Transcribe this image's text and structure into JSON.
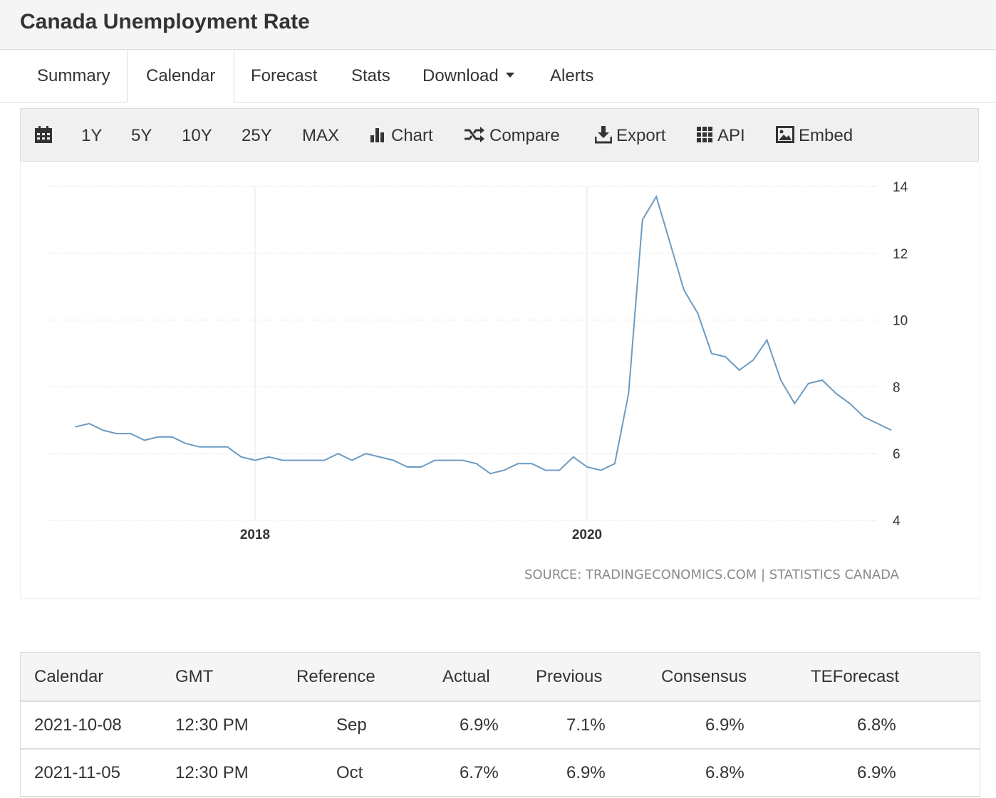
{
  "page": {
    "title": "Canada Unemployment Rate"
  },
  "tabs": [
    {
      "label": "Summary"
    },
    {
      "label": "Calendar",
      "active": true
    },
    {
      "label": "Forecast"
    },
    {
      "label": "Stats"
    },
    {
      "label": "Download",
      "has_dropdown": true
    },
    {
      "label": "Alerts"
    }
  ],
  "toolbar": {
    "calendar_icon": "calendar-icon",
    "ranges": [
      "1Y",
      "5Y",
      "10Y",
      "25Y",
      "MAX"
    ],
    "chart_label": "Chart",
    "chart_icon": "bar-chart-icon",
    "compare_label": "Compare",
    "compare_icon": "shuffle-icon",
    "export_label": "Export",
    "export_icon": "download-icon",
    "api_label": "API",
    "api_icon": "grid-icon",
    "embed_label": "Embed",
    "embed_icon": "image-icon"
  },
  "chart_data": {
    "type": "line",
    "title": "",
    "xlabel": "",
    "ylabel": "",
    "line_color": "#6b9bc3",
    "grid": true,
    "y_axis_side": "right",
    "ylim": [
      4,
      14
    ],
    "yticks": [
      "4",
      "6",
      "8",
      "10",
      "12",
      "14"
    ],
    "xticks": [
      {
        "label": "2018",
        "x": 2018.0
      },
      {
        "label": "2020",
        "x": 2020.0
      }
    ],
    "x_start": 2016.917,
    "x_step": 0.0833333,
    "values": [
      6.8,
      6.9,
      6.7,
      6.6,
      6.6,
      6.4,
      6.5,
      6.5,
      6.3,
      6.2,
      6.2,
      6.2,
      5.9,
      5.8,
      5.9,
      5.8,
      5.8,
      5.8,
      5.8,
      6.0,
      5.8,
      6.0,
      5.9,
      5.8,
      5.6,
      5.6,
      5.8,
      5.8,
      5.8,
      5.7,
      5.4,
      5.5,
      5.7,
      5.7,
      5.5,
      5.5,
      5.9,
      5.6,
      5.5,
      5.7,
      7.8,
      13.0,
      13.7,
      12.3,
      10.9,
      10.2,
      9.0,
      8.9,
      8.5,
      8.8,
      9.4,
      8.2,
      7.5,
      8.1,
      8.2,
      7.8,
      7.5,
      7.1,
      6.9,
      6.7
    ],
    "source": "SOURCE: TRADINGECONOMICS.COM | STATISTICS CANADA"
  },
  "calendar_table": {
    "headers": [
      "Calendar",
      "GMT",
      "Reference",
      "Actual",
      "Previous",
      "Consensus",
      "TEForecast"
    ],
    "rows": [
      [
        "2021-10-08",
        "12:30 PM",
        "Sep",
        "6.9%",
        "7.1%",
        "6.9%",
        "6.8%"
      ],
      [
        "2021-11-05",
        "12:30 PM",
        "Oct",
        "6.7%",
        "6.9%",
        "6.8%",
        "6.9%"
      ]
    ]
  }
}
